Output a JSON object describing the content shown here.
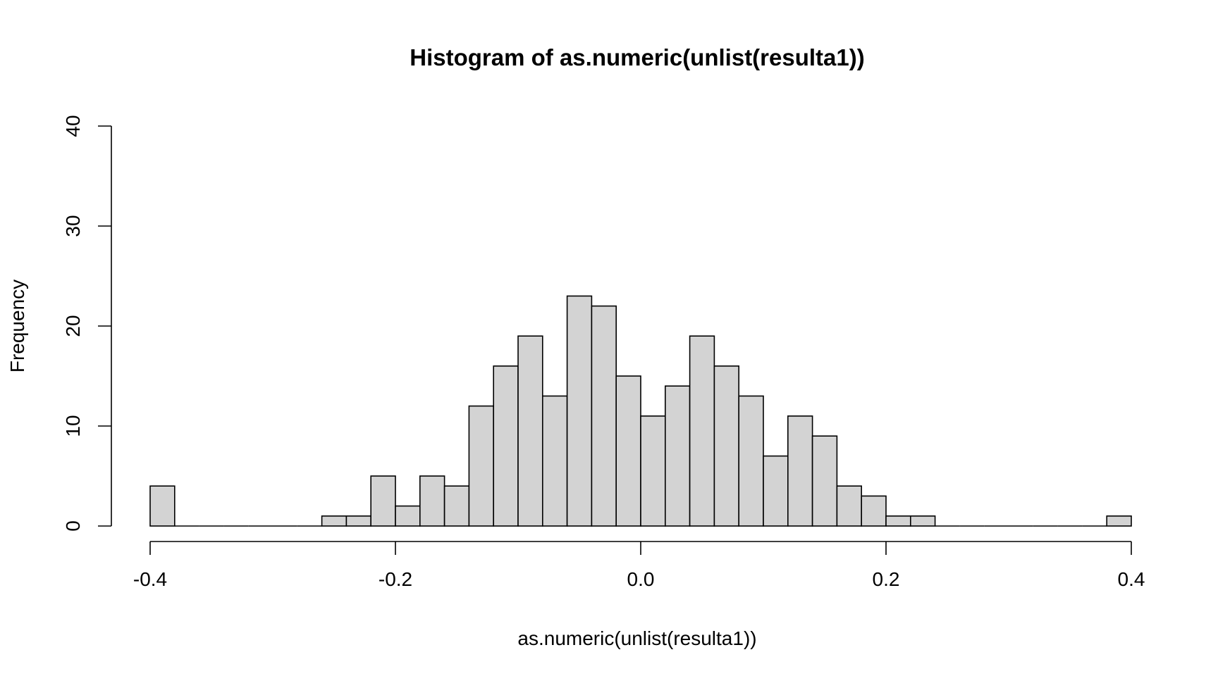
{
  "chart_data": {
    "type": "bar",
    "title": "Histogram of as.numeric(unlist(resulta1))",
    "xlabel": "as.numeric(unlist(resulta1))",
    "ylabel": "Frequency",
    "xlim": [
      -0.4,
      0.4
    ],
    "ylim": [
      0,
      40
    ],
    "x_ticks": [
      "-0.4",
      "-0.2",
      "0.0",
      "0.2",
      "0.4"
    ],
    "y_ticks": [
      "0",
      "10",
      "20",
      "30",
      "40"
    ],
    "bin_width": 0.02,
    "bins": [
      {
        "start": -0.4,
        "end": -0.38,
        "count": 4
      },
      {
        "start": -0.38,
        "end": -0.36,
        "count": 0
      },
      {
        "start": -0.36,
        "end": -0.34,
        "count": 0
      },
      {
        "start": -0.34,
        "end": -0.32,
        "count": 0
      },
      {
        "start": -0.32,
        "end": -0.3,
        "count": 0
      },
      {
        "start": -0.3,
        "end": -0.28,
        "count": 0
      },
      {
        "start": -0.28,
        "end": -0.26,
        "count": 0
      },
      {
        "start": -0.26,
        "end": -0.24,
        "count": 1
      },
      {
        "start": -0.24,
        "end": -0.22,
        "count": 1
      },
      {
        "start": -0.22,
        "end": -0.2,
        "count": 5
      },
      {
        "start": -0.2,
        "end": -0.18,
        "count": 2
      },
      {
        "start": -0.18,
        "end": -0.16,
        "count": 5
      },
      {
        "start": -0.16,
        "end": -0.14,
        "count": 4
      },
      {
        "start": -0.14,
        "end": -0.12,
        "count": 12
      },
      {
        "start": -0.12,
        "end": -0.1,
        "count": 16
      },
      {
        "start": -0.1,
        "end": -0.08,
        "count": 19
      },
      {
        "start": -0.08,
        "end": -0.06,
        "count": 13
      },
      {
        "start": -0.06,
        "end": -0.04,
        "count": 23
      },
      {
        "start": -0.04,
        "end": -0.02,
        "count": 22
      },
      {
        "start": -0.02,
        "end": 0.0,
        "count": 15
      },
      {
        "start": 0.0,
        "end": 0.02,
        "count": 11
      },
      {
        "start": 0.02,
        "end": 0.04,
        "count": 14
      },
      {
        "start": 0.04,
        "end": 0.06,
        "count": 19
      },
      {
        "start": 0.06,
        "end": 0.08,
        "count": 16
      },
      {
        "start": 0.08,
        "end": 0.1,
        "count": 13
      },
      {
        "start": 0.1,
        "end": 0.12,
        "count": 7
      },
      {
        "start": 0.12,
        "end": 0.14,
        "count": 11
      },
      {
        "start": 0.14,
        "end": 0.16,
        "count": 9
      },
      {
        "start": 0.16,
        "end": 0.18,
        "count": 4
      },
      {
        "start": 0.18,
        "end": 0.2,
        "count": 3
      },
      {
        "start": 0.2,
        "end": 0.22,
        "count": 1
      },
      {
        "start": 0.22,
        "end": 0.24,
        "count": 1
      },
      {
        "start": 0.24,
        "end": 0.26,
        "count": 0
      },
      {
        "start": 0.26,
        "end": 0.28,
        "count": 0
      },
      {
        "start": 0.28,
        "end": 0.3,
        "count": 0
      },
      {
        "start": 0.3,
        "end": 0.32,
        "count": 0
      },
      {
        "start": 0.32,
        "end": 0.34,
        "count": 0
      },
      {
        "start": 0.34,
        "end": 0.36,
        "count": 0
      },
      {
        "start": 0.36,
        "end": 0.38,
        "count": 0
      },
      {
        "start": 0.38,
        "end": 0.4,
        "count": 1
      }
    ],
    "bar_fill": "#d3d3d3",
    "bar_stroke": "#000000",
    "grid": false,
    "legend": "none"
  }
}
